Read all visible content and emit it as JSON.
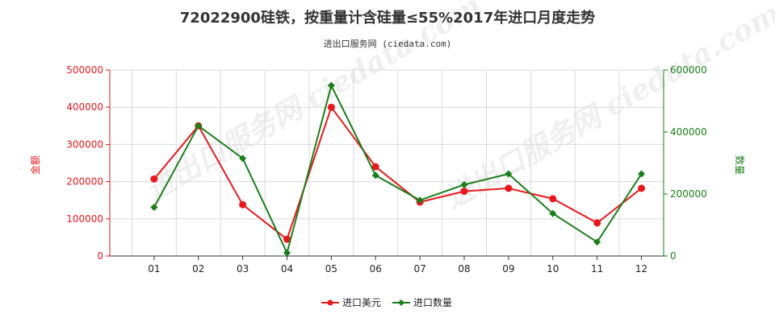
{
  "title": "72022900硅铁，按重量计含硅量≤55%2017年进口月度走势",
  "subtitle": "进出口服务网 (ciedata.com)",
  "watermark": "进出口服务网 ciedata.com",
  "chart_data": {
    "type": "line",
    "categories": [
      "01",
      "02",
      "03",
      "04",
      "05",
      "06",
      "07",
      "08",
      "09",
      "10",
      "11",
      "12"
    ],
    "series": [
      {
        "name": "进口美元",
        "color": "#e8191c",
        "axis": "left",
        "values": [
          207000,
          350000,
          138000,
          45000,
          400000,
          240000,
          145000,
          174000,
          182000,
          154000,
          89000,
          182000
        ]
      },
      {
        "name": "进口数量",
        "color": "#1a7f1a",
        "axis": "right",
        "values": [
          157000,
          420000,
          315000,
          10000,
          550000,
          260000,
          180000,
          230000,
          265000,
          137000,
          45000,
          265000
        ]
      }
    ],
    "y_left": {
      "label": "金额",
      "min": 0,
      "max": 500000,
      "ticks": [
        0,
        100000,
        200000,
        300000,
        400000,
        500000
      ],
      "color": "#e8191c"
    },
    "y_right": {
      "label": "数量",
      "min": 0,
      "max": 600000,
      "ticks": [
        0,
        200000,
        400000,
        600000
      ],
      "color": "#1a7f1a"
    },
    "grid": true,
    "legend": "bottom-center"
  }
}
